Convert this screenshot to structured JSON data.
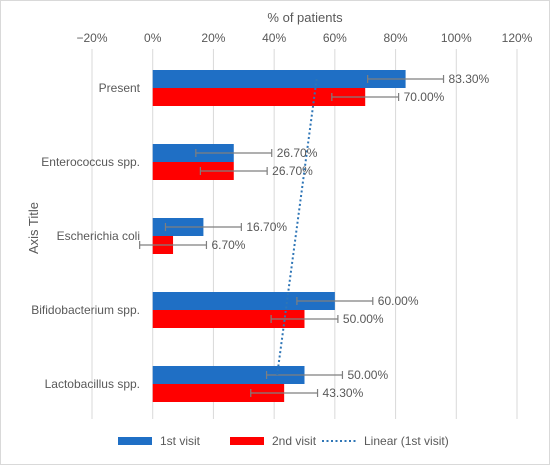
{
  "chart_data": {
    "type": "bar",
    "orientation": "horizontal",
    "xlabel": "% of patients",
    "ylabel": "Axis Title",
    "xlim": [
      -20,
      120
    ],
    "x_ticks": [
      -20,
      0,
      20,
      40,
      60,
      80,
      100,
      120
    ],
    "x_tick_labels": [
      "−20%",
      "0%",
      "20%",
      "40%",
      "60%",
      "80%",
      "100%",
      "120%"
    ],
    "grid": true,
    "legend_position": "bottom",
    "categories": [
      "Present",
      "Enterococcus spp.",
      "Escherichia coli",
      "Bifidobacterium spp.",
      "Lactobacillus spp."
    ],
    "series": [
      {
        "name": "1st visit",
        "color": "#1f6fc5",
        "values": [
          83.3,
          26.7,
          16.7,
          60.0,
          50.0
        ],
        "labels": [
          "83.30%",
          "26.70%",
          "16.70%",
          "60.00%",
          "50.00%"
        ],
        "error": [
          12.5,
          12.5,
          12.5,
          12.5,
          12.5
        ]
      },
      {
        "name": "2nd visit",
        "color": "#ff0000",
        "values": [
          70.0,
          26.7,
          6.7,
          50.0,
          43.3
        ],
        "labels": [
          "70.00%",
          "26.70%",
          "6.70%",
          "50.00%",
          "43.30%"
        ],
        "error": [
          11,
          11,
          11,
          11,
          11
        ]
      }
    ],
    "trendline": {
      "name": "Linear (1st visit)",
      "color": "#2e75b6",
      "style": "dotted",
      "from": 54,
      "to": 41
    }
  }
}
